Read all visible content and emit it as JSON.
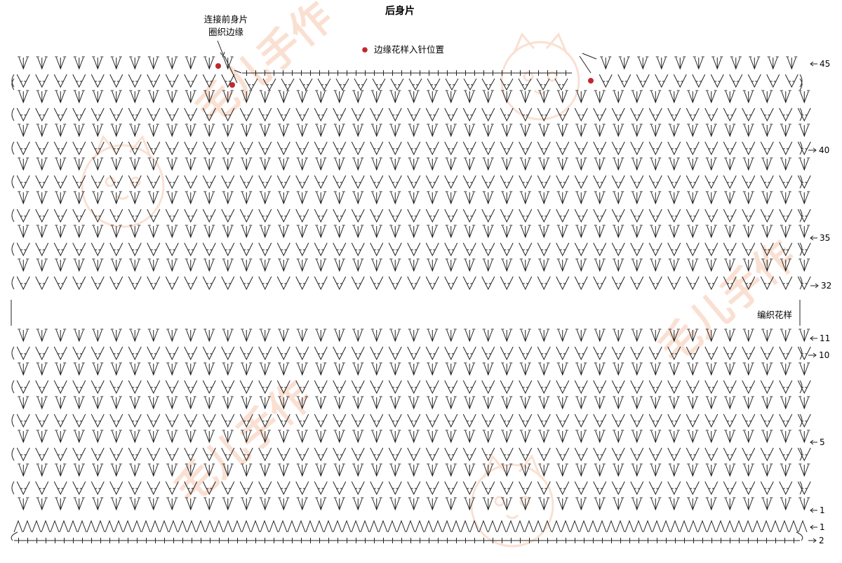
{
  "title": "后身片",
  "annotation": {
    "lines": [
      "连接前身片",
      "圈织边缘"
    ]
  },
  "legend": {
    "dot_color": "#c0282d",
    "text": "边缘花样入针位置"
  },
  "pattern_label": "编织花样",
  "row_labels": [
    "45",
    "40",
    "35",
    "32",
    "11",
    "10",
    "5",
    "1",
    "1",
    "2"
  ],
  "watermark_text": "毛儿手作",
  "colors": {
    "ink": "#222222",
    "watermark": "#f6c7ad"
  }
}
